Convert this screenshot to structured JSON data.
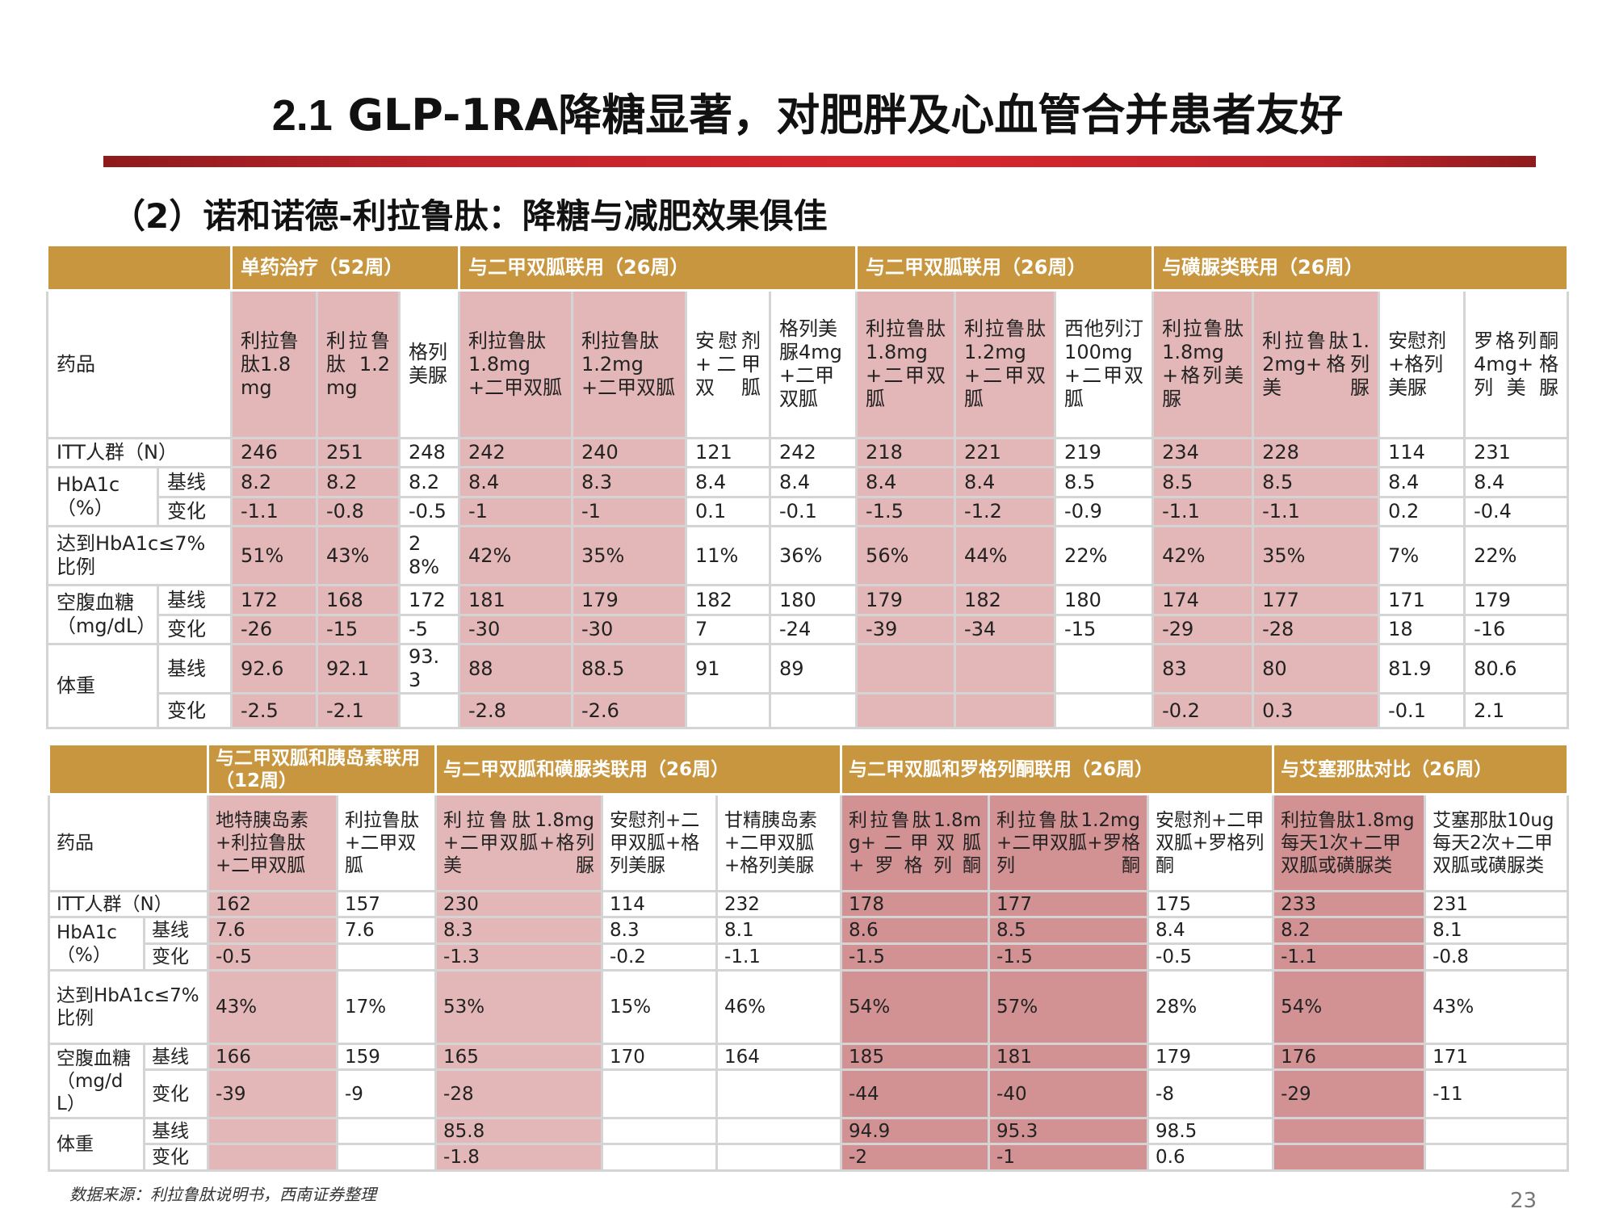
{
  "title": {
    "num": "2.1",
    "text": "GLP-1RA降糖显著，对肥胖及心血管合并患者友好"
  },
  "subtitle": "（2）诺和诺德-利拉鲁肽：降糖与减肥效果俱佳",
  "colors": {
    "header_gold": "#c8963e",
    "highlight_pink": "#e3b7b7",
    "highlight_dark": "#d29293",
    "title_bar_red": "#d9262e"
  },
  "table1": {
    "groups": [
      "单药治疗（52周）",
      "与二甲双胍联用（26周）",
      "与二甲双胍联用（26周）",
      "与磺脲类联用（26周）"
    ],
    "drug_label": "药品",
    "drugs": [
      "利拉鲁肽1.8mg",
      "利拉鲁肽1.2mg",
      "格列美脲",
      "利拉鲁肽1.8mg+二甲双胍",
      "利拉鲁肽1.2mg+二甲双胍",
      "安慰剂+二甲双胍",
      "格列美脲4mg+二甲双胍",
      "利拉鲁肽1.8mg+二甲双胍",
      "利拉鲁肽1.2mg+二甲双胍",
      "西他列汀100mg+二甲双胍",
      "利拉鲁肽1.8mg+格列美脲",
      "利拉鲁肽1.2mg+格列美脲",
      "安慰剂+格列美脲",
      "罗格列酮4mg+格列美脲"
    ],
    "itt_label": "ITT人群（N）",
    "itt": [
      "246",
      "251",
      "248",
      "242",
      "240",
      "121",
      "242",
      "218",
      "221",
      "219",
      "234",
      "228",
      "114",
      "231"
    ],
    "hba1c_label": "HbA1c（%）",
    "baseline_label": "基线",
    "change_label": "变化",
    "hba1c_base": [
      "8.2",
      "8.2",
      "8.2",
      "8.4",
      "8.3",
      "8.4",
      "8.4",
      "8.4",
      "8.4",
      "8.5",
      "8.5",
      "8.5",
      "8.4",
      "8.4"
    ],
    "hba1c_change": [
      "-1.1",
      "-0.8",
      "-0.5",
      "-1",
      "-1",
      "0.1",
      "-0.1",
      "-1.5",
      "-1.2",
      "-0.9",
      "-1.1",
      "-1.1",
      "0.2",
      "-0.4"
    ],
    "target_label": "达到HbA1c≤7%比例",
    "target": [
      "51%",
      "43%",
      "28%",
      "42%",
      "35%",
      "11%",
      "36%",
      "56%",
      "44%",
      "22%",
      "42%",
      "35%",
      "7%",
      "22%"
    ],
    "fpg_label": "空腹血糖（mg/dL）",
    "fpg_base": [
      "172",
      "168",
      "172",
      "181",
      "179",
      "182",
      "180",
      "179",
      "182",
      "180",
      "174",
      "177",
      "171",
      "179"
    ],
    "fpg_change": [
      "-26",
      "-15",
      "-5",
      "-30",
      "-30",
      "7",
      "-24",
      "-39",
      "-34",
      "-15",
      "-29",
      "-28",
      "18",
      "-16"
    ],
    "weight_label": "体重",
    "weight_base": [
      "92.6",
      "92.1",
      "93.3",
      "88",
      "88.5",
      "91",
      "89",
      "",
      "",
      "",
      "83",
      "80",
      "81.9",
      "80.6"
    ],
    "weight_change": [
      "-2.5",
      "-2.1",
      "",
      "-2.8",
      "-2.6",
      "",
      "",
      "",
      "",
      "",
      "-0.2",
      "0.3",
      "-0.1",
      "2.1"
    ]
  },
  "table2": {
    "groups": [
      "与二甲双胍和胰岛素联用（12周）",
      "与二甲双胍和磺脲类联用（26周）",
      "与二甲双胍和罗格列酮联用（26周）",
      "与艾塞那肽对比（26周）"
    ],
    "drug_label": "药品",
    "drugs": [
      "地特胰岛素+利拉鲁肽+二甲双胍",
      "利拉鲁肽+二甲双胍",
      "利拉鲁肽1.8mg+二甲双胍+格列美脲",
      "安慰剂+二甲双胍+格列美脲",
      "甘精胰岛素+二甲双胍+格列美脲",
      "利拉鲁肽1.8mg+二甲双胍+罗格列酮",
      "利拉鲁肽1.2mg+二甲双胍+罗格列酮",
      "安慰剂+二甲双胍+罗格列酮",
      "利拉鲁肽1.8mg每天1次+二甲双胍或磺脲类",
      "艾塞那肽10ug每天2次+二甲双胍或磺脲类"
    ],
    "itt_label": "ITT人群（N）",
    "itt": [
      "162",
      "157",
      "230",
      "114",
      "232",
      "178",
      "177",
      "175",
      "233",
      "231"
    ],
    "hba1c_label": "HbA1c（%）",
    "baseline_label": "基线",
    "change_label": "变化",
    "hba1c_base": [
      "7.6",
      "7.6",
      "8.3",
      "8.3",
      "8.1",
      "8.6",
      "8.5",
      "8.4",
      "8.2",
      "8.1"
    ],
    "hba1c_change": [
      "-0.5",
      "",
      "-1.3",
      "-0.2",
      "-1.1",
      "-1.5",
      "-1.5",
      "-0.5",
      "-1.1",
      "-0.8"
    ],
    "target_label": "达到HbA1c≤7%比例",
    "target": [
      "43%",
      "17%",
      "53%",
      "15%",
      "46%",
      "54%",
      "57%",
      "28%",
      "54%",
      "43%"
    ],
    "fpg_label": "空腹血糖（mg/dL）",
    "fpg_base": [
      "166",
      "159",
      "165",
      "170",
      "164",
      "185",
      "181",
      "179",
      "176",
      "171"
    ],
    "fpg_change": [
      "-39",
      "-9",
      "-28",
      "",
      "",
      "-44",
      "-40",
      "-8",
      "-29",
      "-11"
    ],
    "weight_label": "体重",
    "weight_base": [
      "",
      "",
      "85.8",
      "",
      "",
      "94.9",
      "95.3",
      "98.5",
      "",
      ""
    ],
    "weight_change": [
      "",
      "",
      "-1.8",
      "",
      "",
      "-2",
      "-1",
      "0.6",
      "",
      ""
    ]
  },
  "source": "数据来源：利拉鲁肽说明书，西南证券整理",
  "page_number": "23"
}
